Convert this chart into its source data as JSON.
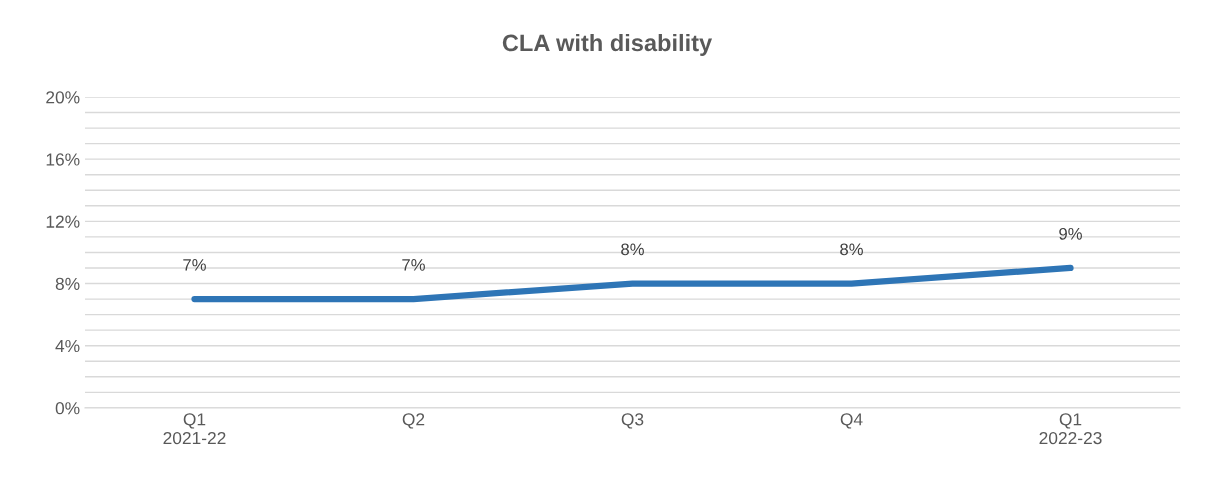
{
  "chart_data": {
    "type": "line",
    "title": "CLA with disability",
    "categories": [
      "Q1\n2021-22",
      "Q2",
      "Q3",
      "Q4",
      "Q1\n2022-23"
    ],
    "series": [
      {
        "color": "#2e75b6",
        "values": [
          7,
          7,
          8,
          8,
          9
        ],
        "value_labels": [
          "7%",
          "7%",
          "8%",
          "8%",
          "9%"
        ]
      }
    ],
    "ylim": [
      0,
      20
    ],
    "yticks": [
      {
        "value": 0,
        "label": "0%"
      },
      {
        "value": 1,
        "label": null
      },
      {
        "value": 2,
        "label": null
      },
      {
        "value": 3,
        "label": null
      },
      {
        "value": 4,
        "label": "4%"
      },
      {
        "value": 5,
        "label": null
      },
      {
        "value": 6,
        "label": null
      },
      {
        "value": 7,
        "label": null
      },
      {
        "value": 8,
        "label": "8%"
      },
      {
        "value": 9,
        "label": null
      },
      {
        "value": 10,
        "label": null
      },
      {
        "value": 11,
        "label": null
      },
      {
        "value": 12,
        "label": "12%"
      },
      {
        "value": 13,
        "label": null
      },
      {
        "value": 14,
        "label": null
      },
      {
        "value": 15,
        "label": null
      },
      {
        "value": 16,
        "label": "16%"
      },
      {
        "value": 17,
        "label": null
      },
      {
        "value": 18,
        "label": null
      },
      {
        "value": 19,
        "label": null
      },
      {
        "value": 20,
        "label": "20%"
      }
    ],
    "grid": "y",
    "line_style": "solid",
    "marker": "none"
  }
}
